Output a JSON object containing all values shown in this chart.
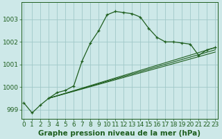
{
  "title": "Graphe pression niveau de la mer (hPa)",
  "background_color": "#cde8e8",
  "plot_bg_color": "#cde8e8",
  "line_color": "#1e5e1e",
  "grid_color": "#a0c8c8",
  "main_series": {
    "x": [
      0,
      1,
      2,
      3,
      4,
      5,
      6,
      7,
      8,
      9,
      10,
      11,
      12,
      13,
      14,
      15,
      16,
      17,
      18,
      19,
      20,
      21,
      22,
      23
    ],
    "y": [
      999.3,
      998.85,
      999.2,
      999.5,
      999.75,
      999.85,
      1000.05,
      1001.15,
      1001.95,
      1002.5,
      1003.2,
      1003.35,
      1003.3,
      1003.25,
      1003.1,
      1002.6,
      1002.2,
      1002.0,
      1002.0,
      1001.95,
      1001.9,
      1001.4,
      1001.65,
      1001.75
    ]
  },
  "straight_lines": [
    {
      "x": [
        3,
        23
      ],
      "y": [
        999.5,
        1001.75
      ]
    },
    {
      "x": [
        3,
        23
      ],
      "y": [
        999.5,
        1001.55
      ]
    },
    {
      "x": [
        3,
        23
      ],
      "y": [
        999.5,
        1001.65
      ]
    }
  ],
  "ylim": [
    998.6,
    1003.75
  ],
  "xlim": [
    -0.3,
    23.3
  ],
  "yticks": [
    999,
    1000,
    1001,
    1002,
    1003
  ],
  "xticks": [
    0,
    1,
    2,
    3,
    4,
    5,
    6,
    7,
    8,
    9,
    10,
    11,
    12,
    13,
    14,
    15,
    16,
    17,
    18,
    19,
    20,
    21,
    22,
    23
  ],
  "tick_fontsize": 6.5,
  "title_fontsize": 7.5
}
